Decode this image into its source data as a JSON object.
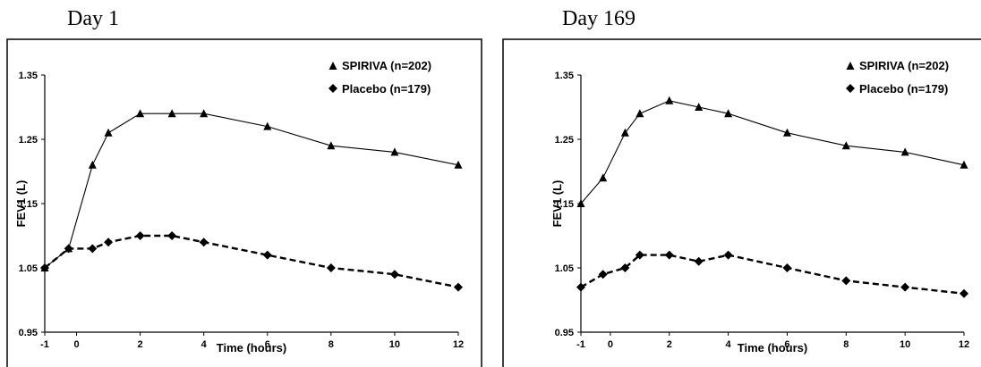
{
  "chart_data": [
    {
      "type": "line",
      "title": "Day 1",
      "xlabel": "Time (hours)",
      "ylabel": "FEV1 (L)",
      "ylim": [
        0.95,
        1.35
      ],
      "xlim": [
        -1,
        12
      ],
      "x_ticks": [
        -1,
        0,
        2,
        4,
        6,
        8,
        10,
        12
      ],
      "y_ticks": [
        "1.35",
        "1.25",
        "1.15",
        "1.05",
        "0.95"
      ],
      "grid": false,
      "legend_position": "top-right",
      "series": [
        {
          "name": "SPIRIVA (n=202)",
          "marker": "triangle",
          "line_style": "solid",
          "x": [
            -1,
            -0.25,
            0.5,
            1,
            2,
            3,
            4,
            6,
            8,
            10,
            12
          ],
          "y": [
            1.05,
            1.08,
            1.21,
            1.26,
            1.29,
            1.29,
            1.29,
            1.27,
            1.24,
            1.23,
            1.21
          ]
        },
        {
          "name": "Placebo (n=179)",
          "marker": "diamond",
          "line_style": "dashed",
          "x": [
            -1,
            -0.25,
            0.5,
            1,
            2,
            3,
            4,
            6,
            8,
            10,
            12
          ],
          "y": [
            1.05,
            1.08,
            1.08,
            1.09,
            1.1,
            1.1,
            1.09,
            1.07,
            1.05,
            1.04,
            1.02
          ]
        }
      ]
    },
    {
      "type": "line",
      "title": "Day 169",
      "xlabel": "Time (hours)",
      "ylabel": "FEV1 (L)",
      "ylim": [
        0.95,
        1.35
      ],
      "xlim": [
        -1,
        12
      ],
      "x_ticks": [
        -1,
        0,
        2,
        4,
        6,
        8,
        10,
        12
      ],
      "y_ticks": [
        "1.35",
        "1.25",
        "1.15",
        "1.05",
        "0.95"
      ],
      "grid": false,
      "legend_position": "top-right",
      "series": [
        {
          "name": "SPIRIVA (n=202)",
          "marker": "triangle",
          "line_style": "solid",
          "x": [
            -1,
            -0.25,
            0.5,
            1,
            2,
            3,
            4,
            6,
            8,
            10,
            12
          ],
          "y": [
            1.15,
            1.19,
            1.26,
            1.29,
            1.31,
            1.3,
            1.29,
            1.26,
            1.24,
            1.23,
            1.21
          ]
        },
        {
          "name": "Placebo (n=179)",
          "marker": "diamond",
          "line_style": "dashed",
          "x": [
            -1,
            -0.25,
            0.5,
            1,
            2,
            3,
            4,
            6,
            8,
            10,
            12
          ],
          "y": [
            1.02,
            1.04,
            1.05,
            1.07,
            1.07,
            1.06,
            1.07,
            1.05,
            1.03,
            1.02,
            1.01
          ]
        }
      ]
    }
  ]
}
